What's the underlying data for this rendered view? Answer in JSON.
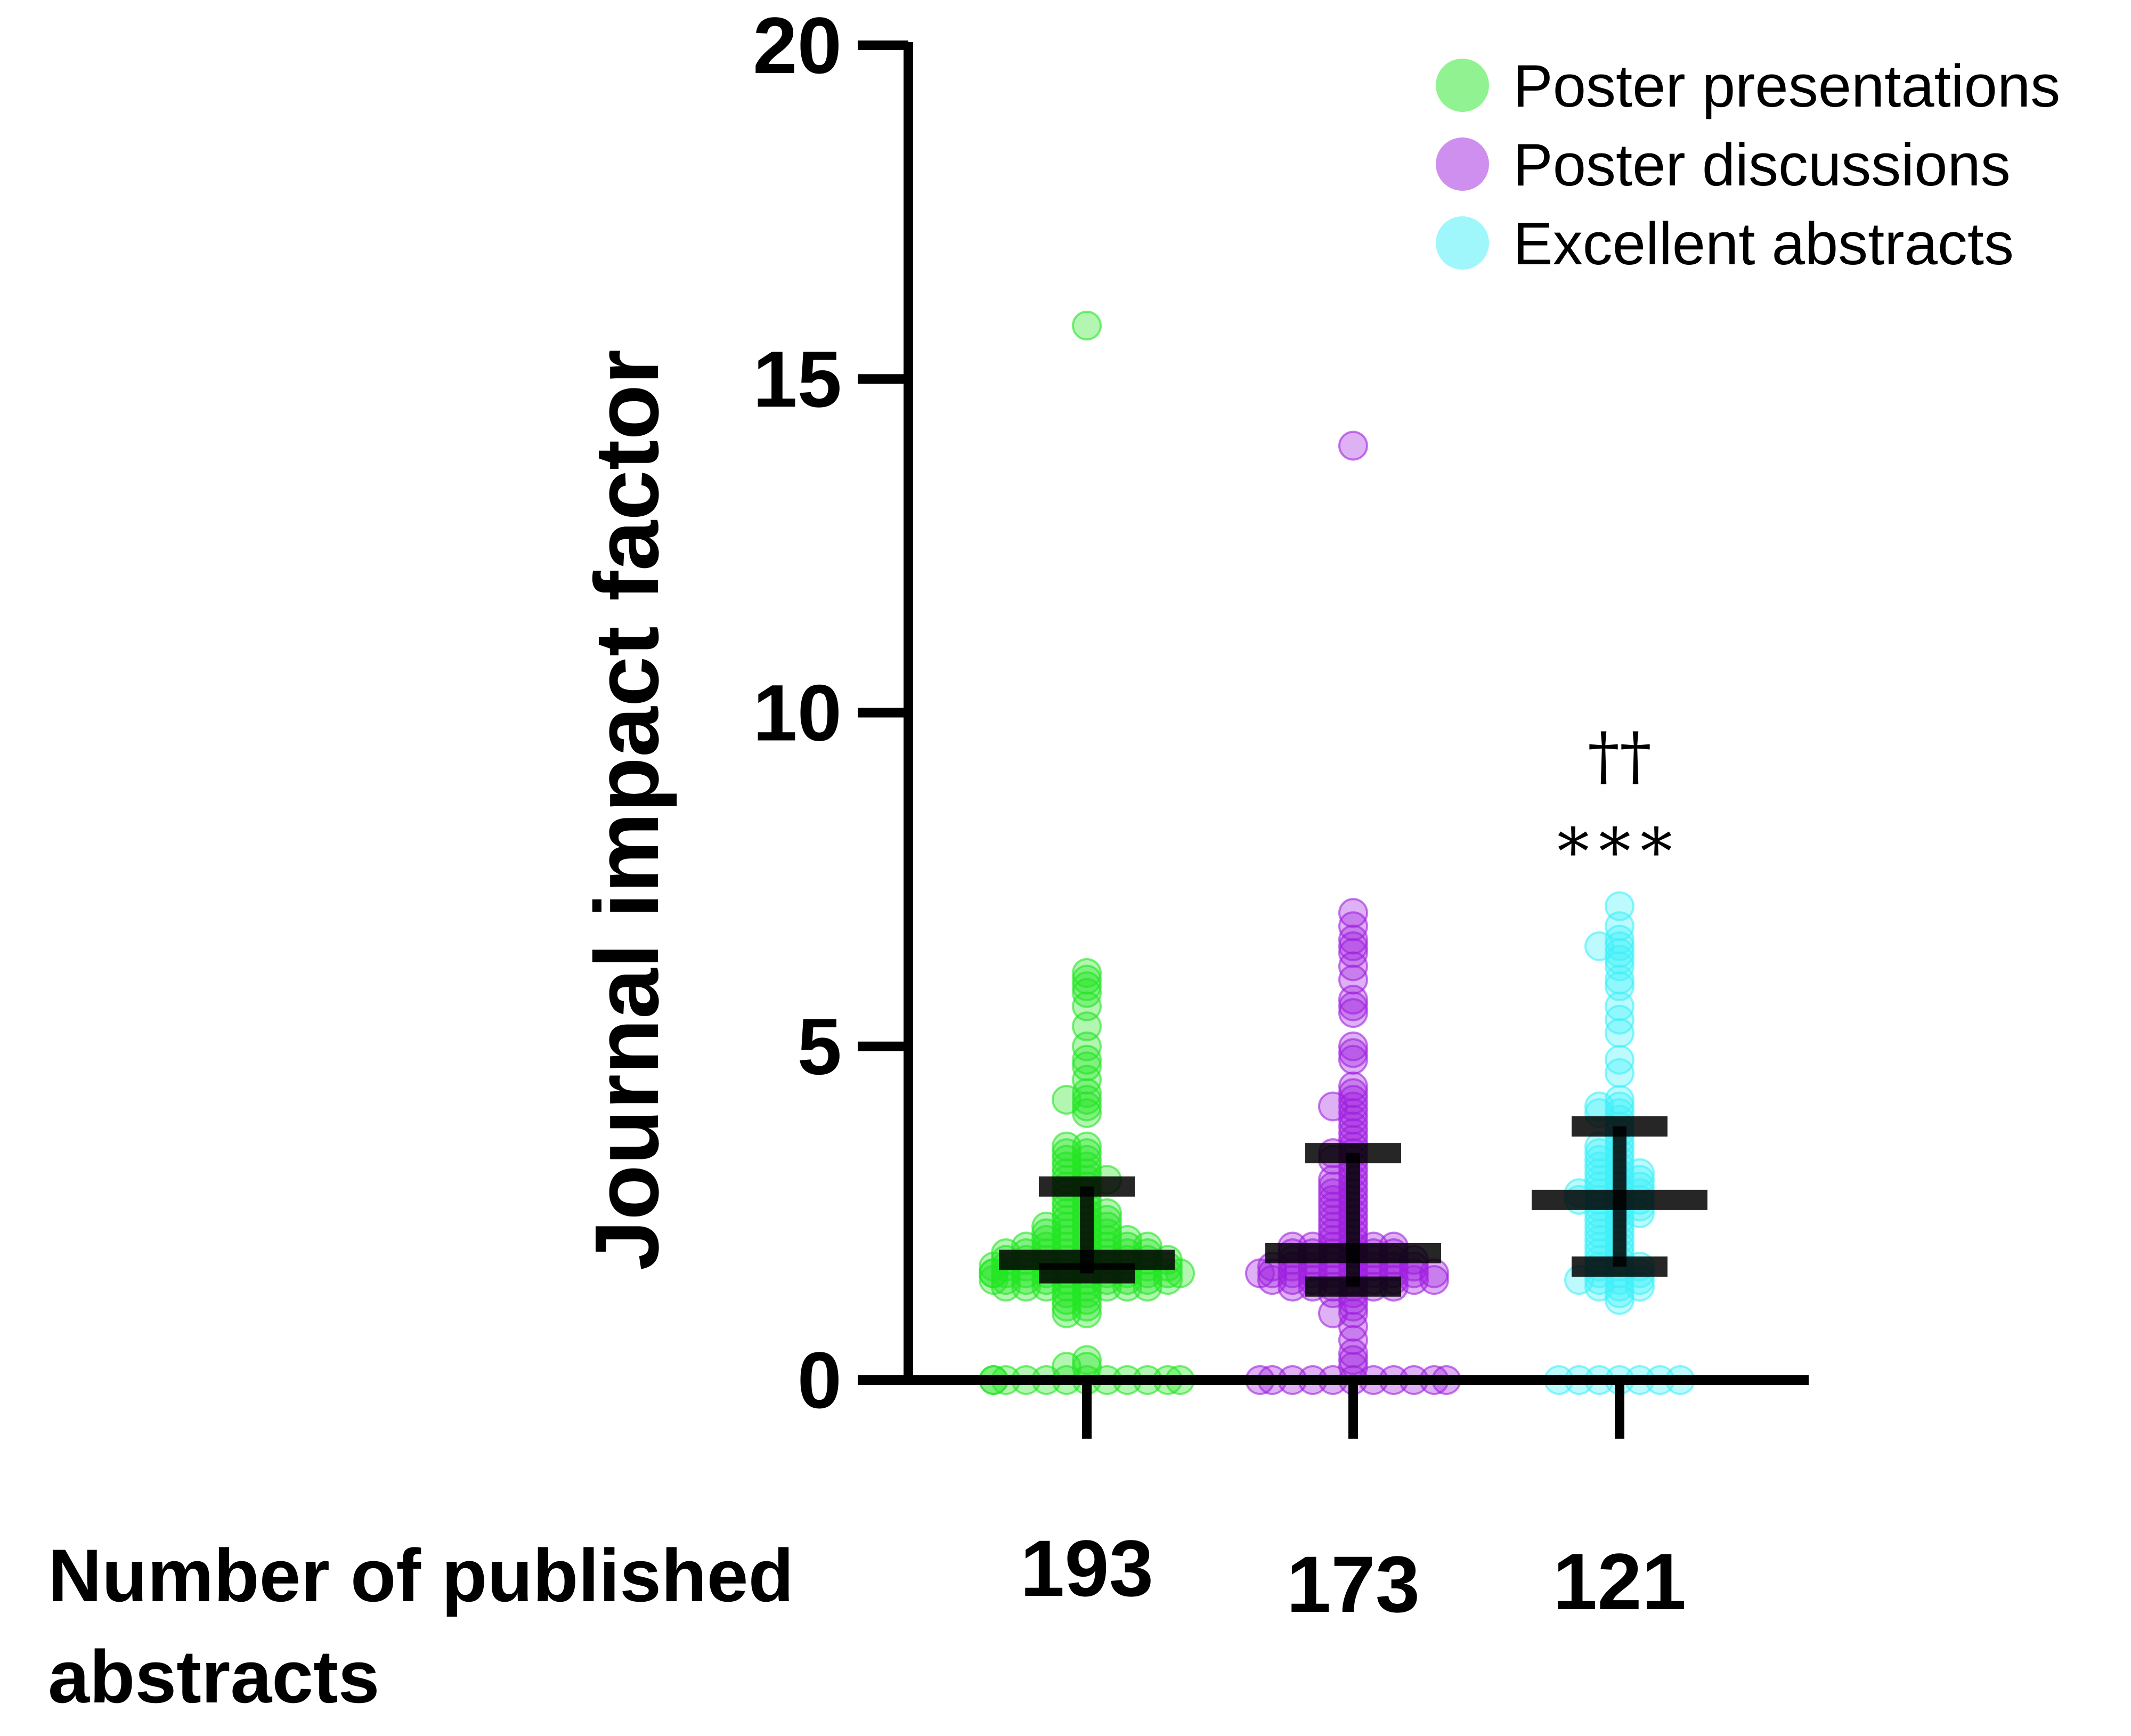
{
  "chart_data": {
    "type": "scatter",
    "ylabel": "Journal impact factor",
    "ylim": [
      0,
      20
    ],
    "y_ticks": [
      "0",
      "5",
      "10",
      "15",
      "20"
    ],
    "grid": false,
    "legend_position": "top-right",
    "footer_label_line1": "Number of published",
    "footer_label_line2": "abstracts",
    "series": [
      {
        "name": "Poster presentations",
        "color": "#22e622",
        "count": "193",
        "median": 1.8,
        "q1": 1.6,
        "q3": 2.9,
        "values": [
          0,
          0,
          0,
          0,
          0,
          0,
          0,
          0,
          0,
          0,
          0,
          0,
          0.2,
          0.2,
          0.3,
          1.0,
          1.0,
          1.1,
          1.1,
          1.2,
          1.2,
          1.3,
          1.3,
          1.4,
          1.4,
          1.4,
          1.4,
          1.4,
          1.4,
          1.4,
          1.4,
          1.5,
          1.5,
          1.5,
          1.5,
          1.5,
          1.5,
          1.5,
          1.5,
          1.5,
          1.5,
          1.6,
          1.6,
          1.6,
          1.6,
          1.6,
          1.6,
          1.6,
          1.6,
          1.6,
          1.6,
          1.6,
          1.6,
          1.7,
          1.7,
          1.7,
          1.7,
          1.7,
          1.7,
          1.7,
          1.7,
          1.7,
          1.7,
          1.8,
          1.8,
          1.8,
          1.8,
          1.8,
          1.8,
          1.8,
          1.8,
          1.8,
          1.9,
          1.9,
          1.9,
          1.9,
          1.9,
          1.9,
          1.9,
          1.9,
          2.0,
          2.0,
          2.0,
          2.0,
          2.0,
          2.0,
          2.0,
          2.1,
          2.1,
          2.1,
          2.1,
          2.1,
          2.2,
          2.2,
          2.2,
          2.2,
          2.3,
          2.3,
          2.3,
          2.3,
          2.4,
          2.4,
          2.4,
          2.5,
          2.5,
          2.5,
          2.6,
          2.6,
          2.7,
          2.7,
          2.8,
          2.8,
          2.9,
          2.9,
          3.0,
          3.0,
          3.0,
          3.1,
          3.1,
          3.2,
          3.2,
          3.3,
          3.3,
          3.4,
          3.4,
          3.5,
          3.5,
          4.0,
          4.1,
          4.2,
          4.2,
          4.3,
          4.5,
          4.7,
          4.8,
          5.0,
          5.3,
          5.6,
          5.8,
          5.9,
          6.0,
          6.1,
          15.8
        ]
      },
      {
        "name": "Poster discussions",
        "color": "#a020e0",
        "count": "173",
        "median": 1.9,
        "q1": 1.4,
        "q3": 3.4,
        "values": [
          0,
          0,
          0,
          0,
          0,
          0,
          0,
          0,
          0,
          0,
          0,
          0.2,
          0.3,
          0.4,
          0.6,
          0.8,
          1.0,
          1.0,
          1.1,
          1.2,
          1.3,
          1.3,
          1.4,
          1.4,
          1.4,
          1.4,
          1.4,
          1.4,
          1.5,
          1.5,
          1.5,
          1.5,
          1.5,
          1.5,
          1.5,
          1.5,
          1.5,
          1.6,
          1.6,
          1.6,
          1.6,
          1.6,
          1.6,
          1.6,
          1.6,
          1.6,
          1.6,
          1.7,
          1.7,
          1.7,
          1.7,
          1.7,
          1.7,
          1.7,
          1.7,
          1.8,
          1.8,
          1.8,
          1.8,
          1.8,
          1.8,
          1.8,
          1.9,
          1.9,
          1.9,
          1.9,
          1.9,
          1.9,
          2.0,
          2.0,
          2.0,
          2.0,
          2.0,
          2.0,
          2.1,
          2.1,
          2.2,
          2.2,
          2.3,
          2.3,
          2.4,
          2.4,
          2.5,
          2.5,
          2.6,
          2.6,
          2.7,
          2.7,
          2.8,
          2.8,
          2.9,
          2.9,
          3.0,
          3.0,
          3.1,
          3.2,
          3.3,
          3.3,
          3.4,
          3.4,
          3.5,
          3.6,
          3.7,
          3.8,
          3.9,
          4.0,
          4.1,
          4.1,
          4.2,
          4.3,
          4.4,
          4.8,
          4.9,
          5.0,
          5.5,
          5.6,
          5.7,
          6.0,
          6.2,
          6.4,
          6.5,
          6.6,
          6.8,
          7.0,
          14.0
        ]
      },
      {
        "name": "Excellent abstracts",
        "color": "#40f0f8",
        "count": "121",
        "median": 2.7,
        "q1": 1.7,
        "q3": 3.8,
        "values": [
          0,
          0,
          0,
          0,
          0,
          0,
          0,
          1.2,
          1.3,
          1.4,
          1.4,
          1.4,
          1.5,
          1.5,
          1.5,
          1.5,
          1.6,
          1.6,
          1.6,
          1.7,
          1.7,
          1.7,
          1.8,
          1.8,
          1.9,
          1.9,
          2.0,
          2.0,
          2.1,
          2.1,
          2.2,
          2.2,
          2.3,
          2.3,
          2.4,
          2.4,
          2.5,
          2.5,
          2.5,
          2.6,
          2.6,
          2.6,
          2.7,
          2.7,
          2.7,
          2.7,
          2.8,
          2.8,
          2.8,
          2.8,
          2.9,
          2.9,
          2.9,
          3.0,
          3.0,
          3.0,
          3.1,
          3.1,
          3.1,
          3.2,
          3.2,
          3.3,
          3.3,
          3.4,
          3.4,
          3.5,
          3.5,
          3.6,
          3.7,
          3.8,
          3.9,
          4.0,
          4.0,
          4.1,
          4.1,
          4.2,
          4.6,
          4.8,
          5.2,
          5.4,
          5.6,
          5.9,
          6.0,
          6.2,
          6.3,
          6.4,
          6.5,
          6.5,
          6.6,
          6.8,
          7.1
        ],
        "annotation_line1": "††",
        "annotation_line2": "***"
      }
    ]
  }
}
